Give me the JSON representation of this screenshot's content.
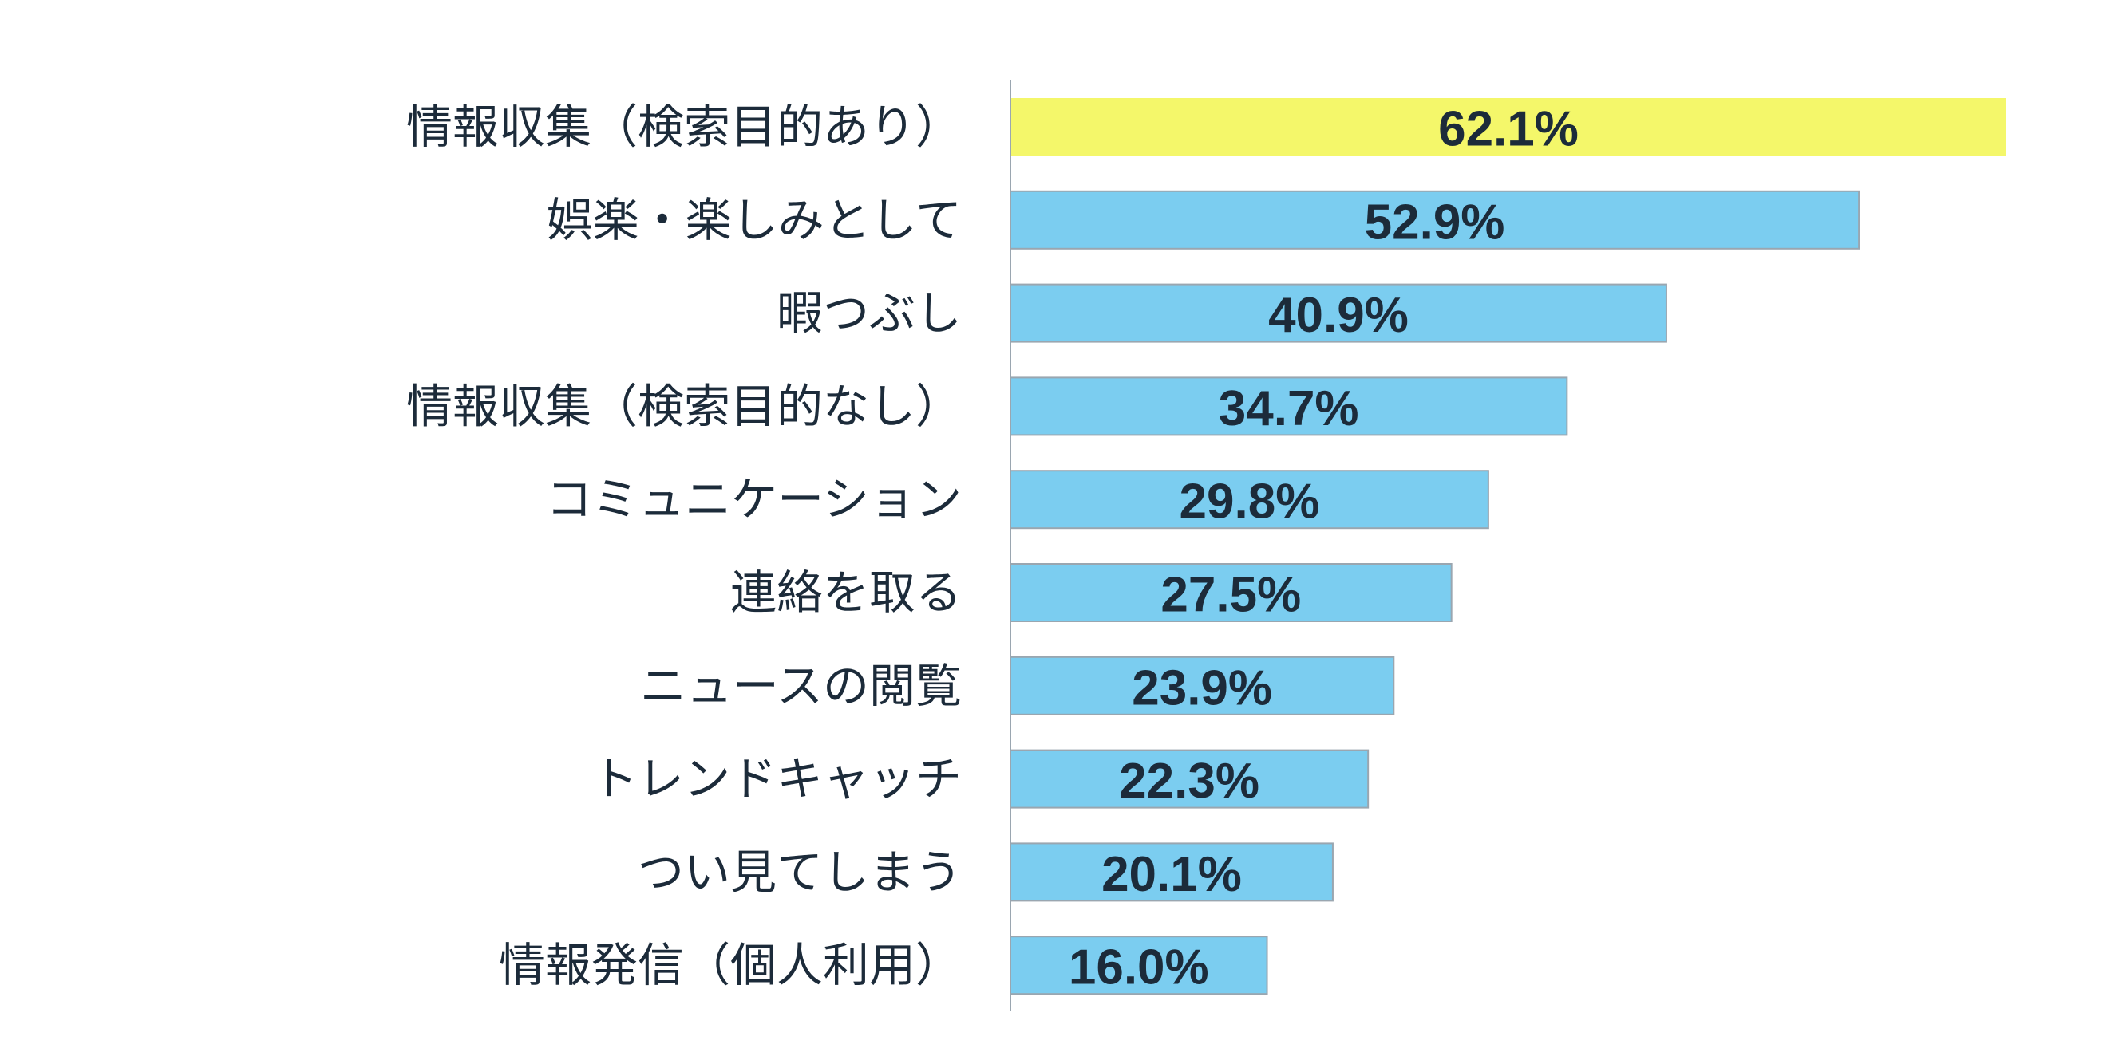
{
  "chart_data": {
    "type": "bar",
    "orientation": "horizontal",
    "title": "",
    "xlabel": "",
    "ylabel": "",
    "xlim": [
      0,
      62.1
    ],
    "grid": false,
    "legend": "none",
    "categories": [
      "情報収集（検索目的あり）",
      "娯楽・楽しみとして",
      "暇つぶし",
      "情報収集（検索目的なし）",
      "コミュニケーション",
      "連絡を取る",
      "ニュースの閲覧",
      "トレンドキャッチ",
      "つい見てしまう",
      "情報発信（個人利用）"
    ],
    "values": [
      62.1,
      52.9,
      40.9,
      34.7,
      29.8,
      27.5,
      23.9,
      22.3,
      20.1,
      16.0
    ],
    "value_labels": [
      "62.1%",
      "52.9%",
      "40.9%",
      "34.7%",
      "29.8%",
      "27.5%",
      "23.9%",
      "22.3%",
      "20.1%",
      "16.0%"
    ],
    "highlight_index": 0,
    "colors": {
      "highlight": "#f4f76a",
      "bar": "#7bcdf0",
      "bar_stroke": "#9aa6b0",
      "axis": "#9aa6b0",
      "text": "#1c2b3a"
    }
  }
}
